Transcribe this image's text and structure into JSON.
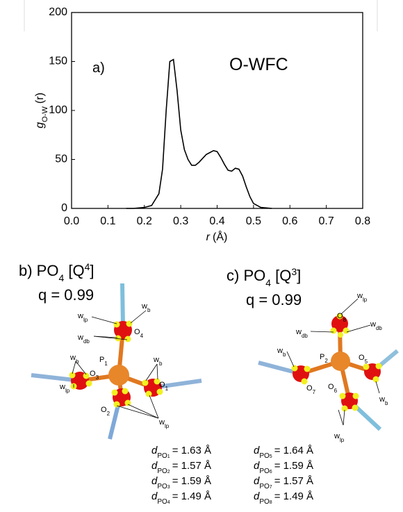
{
  "chart_data": {
    "type": "line",
    "y_label": [
      "g",
      "O-W",
      "(r)"
    ],
    "x_label": [
      "r",
      "(Å)"
    ],
    "annotations": [
      "a)",
      "O-WFC"
    ],
    "x": [
      0.15,
      0.17,
      0.2,
      0.22,
      0.24,
      0.25,
      0.26,
      0.27,
      0.28,
      0.29,
      0.3,
      0.31,
      0.32,
      0.33,
      0.34,
      0.35,
      0.36,
      0.37,
      0.38,
      0.39,
      0.4,
      0.41,
      0.42,
      0.43,
      0.44,
      0.45,
      0.46,
      0.47,
      0.48,
      0.49,
      0.5,
      0.52,
      0.55
    ],
    "series": [
      {
        "color": "#000000",
        "values": [
          0,
          0,
          1,
          3,
          15,
          40,
          100,
          150,
          152,
          120,
          80,
          60,
          50,
          44,
          44,
          47,
          51,
          55,
          57,
          59,
          58,
          52,
          45,
          39,
          38,
          41,
          40,
          33,
          22,
          12,
          5,
          1,
          0
        ]
      }
    ],
    "xlim": [
      0,
      0.8
    ],
    "ylim": [
      0,
      200
    ],
    "xticks": [
      {
        "value": 0,
        "label": "0.0"
      },
      0.1,
      0.2,
      0.3,
      0.4,
      0.5,
      0.6,
      0.7,
      0.8
    ],
    "yticks": [
      0,
      50,
      100,
      150,
      200
    ]
  },
  "panel_b": {
    "title": [
      "b) PO",
      "4",
      " [Q",
      "4",
      "]"
    ],
    "q": "q = 0.99",
    "labels": [
      [
        "w",
        "b"
      ],
      [
        "w",
        "lp"
      ],
      [
        "w",
        "db"
      ],
      [
        "O",
        "4"
      ],
      [
        "w",
        "b"
      ],
      [
        "P",
        "1"
      ],
      [
        "w",
        "b"
      ],
      [
        "O",
        "3"
      ],
      [
        "w",
        "lp"
      ],
      [
        "O",
        "2"
      ],
      [
        "O",
        "1"
      ],
      [
        "w",
        "lp"
      ]
    ]
  },
  "panel_c": {
    "title": [
      "c) PO",
      "4",
      " [Q",
      "3",
      "]"
    ],
    "q": "q = 0.99",
    "labels": [
      [
        "w",
        "lp"
      ],
      [
        "O",
        "8"
      ],
      [
        "w",
        "db"
      ],
      [
        "w",
        "db"
      ],
      [
        "w",
        "b"
      ],
      [
        "P",
        "2"
      ],
      [
        "O",
        "5"
      ],
      [
        "O",
        "7"
      ],
      [
        "O",
        "6"
      ],
      [
        "w",
        "b"
      ],
      [
        "w",
        "lp"
      ]
    ]
  },
  "distances": [
    [
      [
        "d",
        "PO",
        "1",
        "= 1.63 Å"
      ],
      [
        "d",
        "PO",
        "2",
        "= 1.57 Å"
      ],
      [
        "d",
        "PO",
        "3",
        "= 1.59 Å"
      ],
      [
        "d",
        "PO",
        "4",
        "= 1.49 Å"
      ]
    ],
    [
      [
        "d",
        "PO",
        "5",
        "= 1.64 Å"
      ],
      [
        "d",
        "PO",
        "6",
        "= 1.59 Å"
      ],
      [
        "d",
        "PO",
        "7",
        "= 1.57 Å"
      ],
      [
        "d",
        "PO",
        "8",
        "= 1.49 Å"
      ]
    ]
  ]
}
